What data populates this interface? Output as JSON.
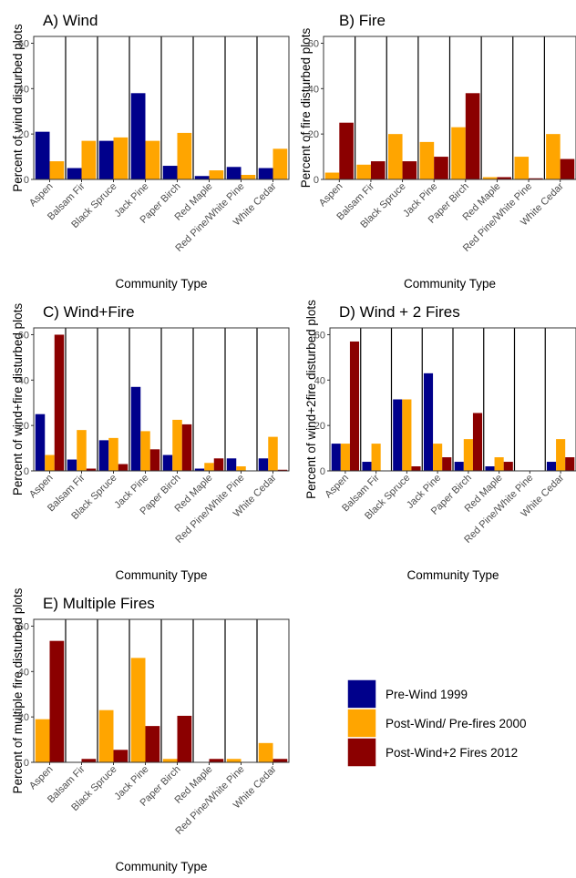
{
  "colors": {
    "pre_wind": "#00008B",
    "post_wind": "#FFA500",
    "post_fire": "#8B0000",
    "panel_border": "#333333",
    "divider": "#000000",
    "tick_text": "#4d4d4d"
  },
  "legend": {
    "placement": "bottom-right",
    "items": [
      {
        "label": "Pre-Wind 1999",
        "color": "#00008B"
      },
      {
        "label": "Post-Wind/ Pre-fires 2000",
        "color": "#FFA500"
      },
      {
        "label": "Post-Wind+2 Fires 2012",
        "color": "#8B0000"
      }
    ]
  },
  "chart_data": [
    {
      "type": "bar",
      "title": "A) Wind",
      "xlabel": "Community Type",
      "ylabel": "Percent of wind disturbed plots",
      "ylim": [
        0,
        63
      ],
      "yticks": [
        0,
        20,
        40,
        60
      ],
      "grid": false,
      "categories": [
        "Aspen",
        "Balsam Fir",
        "Black Spruce",
        "Jack Pine",
        "Paper Birch",
        "Red Maple",
        "Red Pine/White Pine",
        "White Cedar"
      ],
      "series": [
        {
          "name": "Pre-Wind 1999",
          "values": [
            21,
            5,
            17,
            38,
            6,
            1.5,
            5.5,
            5
          ]
        },
        {
          "name": "Post-Wind/ Pre-fires 2000",
          "values": [
            8,
            17,
            18.5,
            17,
            20.5,
            4,
            2,
            13.5
          ]
        }
      ]
    },
    {
      "type": "bar",
      "title": "B) Fire",
      "xlabel": "Community Type",
      "ylabel": "Percent of fire disturbed plots",
      "ylim": [
        0,
        63
      ],
      "yticks": [
        0,
        20,
        40,
        60
      ],
      "grid": false,
      "categories": [
        "Aspen",
        "Balsam Fir",
        "Black Spruce",
        "Jack Pine",
        "Paper Birch",
        "Red Maple",
        "Red Pine/White Pine",
        "White Cedar"
      ],
      "series": [
        {
          "name": "Post-Wind/ Pre-fires 2000",
          "values": [
            3,
            6.5,
            20,
            16.5,
            23,
            1,
            10,
            20
          ]
        },
        {
          "name": "Post-Wind+2 Fires 2012",
          "values": [
            25,
            8,
            8,
            10,
            38,
            1,
            0.5,
            9
          ]
        }
      ]
    },
    {
      "type": "bar",
      "title": "C) Wind+Fire",
      "xlabel": "Community Type",
      "ylabel": "Percent of wind+fire disturbed plots",
      "ylim": [
        0,
        63
      ],
      "yticks": [
        0,
        20,
        40,
        60
      ],
      "grid": false,
      "categories": [
        "Aspen",
        "Balsam Fir",
        "Black Spruce",
        "Jack Pine",
        "Paper Birch",
        "Red Maple",
        "Red Pine/White Pine",
        "White Cedar"
      ],
      "series": [
        {
          "name": "Pre-Wind 1999",
          "values": [
            25,
            5,
            13.5,
            37,
            7,
            1,
            5.5,
            5.5
          ]
        },
        {
          "name": "Post-Wind/ Pre-fires 2000",
          "values": [
            7,
            18,
            14.5,
            17.5,
            22.5,
            3.5,
            2,
            15
          ]
        },
        {
          "name": "Post-Wind+2 Fires 2012",
          "values": [
            60,
            1,
            3,
            9.5,
            20.5,
            5.5,
            0,
            0.5
          ]
        }
      ]
    },
    {
      "type": "bar",
      "title": "D) Wind + 2 Fires",
      "xlabel": "Community Type",
      "ylabel": "Percent of wind+2fire disturbed plots",
      "ylim": [
        0,
        63
      ],
      "yticks": [
        0,
        20,
        40,
        60
      ],
      "grid": false,
      "categories": [
        "Aspen",
        "Balsam Fir",
        "Black Spruce",
        "Jack Pine",
        "Paper Birch",
        "Red Maple",
        "Red Pine/White Pine",
        "White Cedar"
      ],
      "series": [
        {
          "name": "Pre-Wind 1999",
          "values": [
            12,
            4,
            31.5,
            43,
            4,
            2,
            0,
            4
          ]
        },
        {
          "name": "Post-Wind/ Pre-fires 2000",
          "values": [
            12,
            12,
            31.5,
            12,
            14,
            6,
            0,
            14
          ]
        },
        {
          "name": "Post-Wind+2 Fires 2012",
          "values": [
            57,
            0,
            2,
            6,
            25.5,
            4,
            0,
            6
          ]
        }
      ]
    },
    {
      "type": "bar",
      "title": "E) Multiple Fires",
      "xlabel": "Community Type",
      "ylabel": "Percent of multiple fire disturbed plots",
      "ylim": [
        0,
        63
      ],
      "yticks": [
        0,
        20,
        40,
        60
      ],
      "grid": false,
      "categories": [
        "Aspen",
        "Balsam Fir",
        "Black Spruce",
        "Jack Pine",
        "Paper Birch",
        "Red Maple",
        "Red Pine/White Pine",
        "White Cedar"
      ],
      "series": [
        {
          "name": "Post-Wind/ Pre-fires 2000",
          "values": [
            19,
            0,
            23,
            46,
            1.5,
            0,
            1.5,
            8.5
          ]
        },
        {
          "name": "Post-Wind+2 Fires 2012",
          "values": [
            53.5,
            1.5,
            5.5,
            16,
            20.5,
            1.5,
            0,
            1.5
          ]
        }
      ]
    }
  ]
}
